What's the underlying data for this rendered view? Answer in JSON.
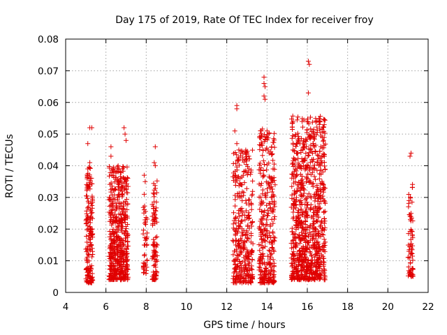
{
  "chart_data": {
    "type": "scatter",
    "title": "Day 175 of 2019, Rate Of TEC Index for receiver froy",
    "xlabel": "GPS time / hours",
    "ylabel": "ROTI / TECUs",
    "xlim": [
      4,
      22
    ],
    "ylim": [
      0,
      0.08
    ],
    "xticks": [
      "4",
      "6",
      "8",
      "10",
      "12",
      "14",
      "16",
      "18",
      "20",
      "22"
    ],
    "yticks": [
      "0",
      "0.01",
      "0.02",
      "0.03",
      "0.04",
      "0.05",
      "0.06",
      "0.07",
      "0.08"
    ],
    "grid": true,
    "marker": "+",
    "color": "#e00000",
    "clusters": [
      {
        "x_start": 5.0,
        "x_end": 5.35,
        "y_min": 0.003,
        "y_max": 0.052,
        "count": 170
      },
      {
        "x_start": 6.15,
        "x_end": 7.1,
        "y_min": 0.004,
        "y_max": 0.052,
        "count": 520
      },
      {
        "x_start": 7.85,
        "x_end": 8.05,
        "y_min": 0.006,
        "y_max": 0.037,
        "count": 40
      },
      {
        "x_start": 8.3,
        "x_end": 8.55,
        "y_min": 0.004,
        "y_max": 0.046,
        "count": 90
      },
      {
        "x_start": 12.3,
        "x_end": 13.3,
        "y_min": 0.003,
        "y_max": 0.059,
        "count": 340
      },
      {
        "x_start": 13.6,
        "x_end": 14.4,
        "y_min": 0.003,
        "y_max": 0.068,
        "count": 320
      },
      {
        "x_start": 15.2,
        "x_end": 16.9,
        "y_min": 0.004,
        "y_max": 0.073,
        "count": 880
      },
      {
        "x_start": 21.0,
        "x_end": 21.25,
        "y_min": 0.005,
        "y_max": 0.044,
        "count": 70
      }
    ],
    "points": [
      [
        5.2,
        0.052
      ],
      [
        5.3,
        0.052
      ],
      [
        5.1,
        0.047
      ],
      [
        5.2,
        0.041
      ],
      [
        5.1,
        0.039
      ],
      [
        6.25,
        0.046
      ],
      [
        6.25,
        0.043
      ],
      [
        6.9,
        0.052
      ],
      [
        6.95,
        0.05
      ],
      [
        7.0,
        0.048
      ],
      [
        6.3,
        0.037
      ],
      [
        6.9,
        0.036
      ],
      [
        7.9,
        0.037
      ],
      [
        7.95,
        0.035
      ],
      [
        7.9,
        0.031
      ],
      [
        7.9,
        0.015
      ],
      [
        7.95,
        0.009
      ],
      [
        8.45,
        0.046
      ],
      [
        8.4,
        0.041
      ],
      [
        8.45,
        0.04
      ],
      [
        12.5,
        0.059
      ],
      [
        12.5,
        0.058
      ],
      [
        12.4,
        0.051
      ],
      [
        12.5,
        0.047
      ],
      [
        12.6,
        0.045
      ],
      [
        12.8,
        0.044
      ],
      [
        12.6,
        0.042
      ],
      [
        13.1,
        0.039
      ],
      [
        13.2,
        0.038
      ],
      [
        13.85,
        0.068
      ],
      [
        13.85,
        0.066
      ],
      [
        13.9,
        0.065
      ],
      [
        13.85,
        0.062
      ],
      [
        13.9,
        0.061
      ],
      [
        14.0,
        0.051
      ],
      [
        14.05,
        0.045
      ],
      [
        14.1,
        0.044
      ],
      [
        14.3,
        0.039
      ],
      [
        14.4,
        0.034
      ],
      [
        16.05,
        0.073
      ],
      [
        16.1,
        0.072
      ],
      [
        16.05,
        0.063
      ],
      [
        16.0,
        0.054
      ],
      [
        15.85,
        0.046
      ],
      [
        15.95,
        0.046
      ],
      [
        16.35,
        0.046
      ],
      [
        16.3,
        0.042
      ],
      [
        16.5,
        0.041
      ],
      [
        16.65,
        0.04
      ],
      [
        21.15,
        0.044
      ],
      [
        21.1,
        0.043
      ],
      [
        21.05,
        0.029
      ],
      [
        21.15,
        0.025
      ]
    ]
  }
}
